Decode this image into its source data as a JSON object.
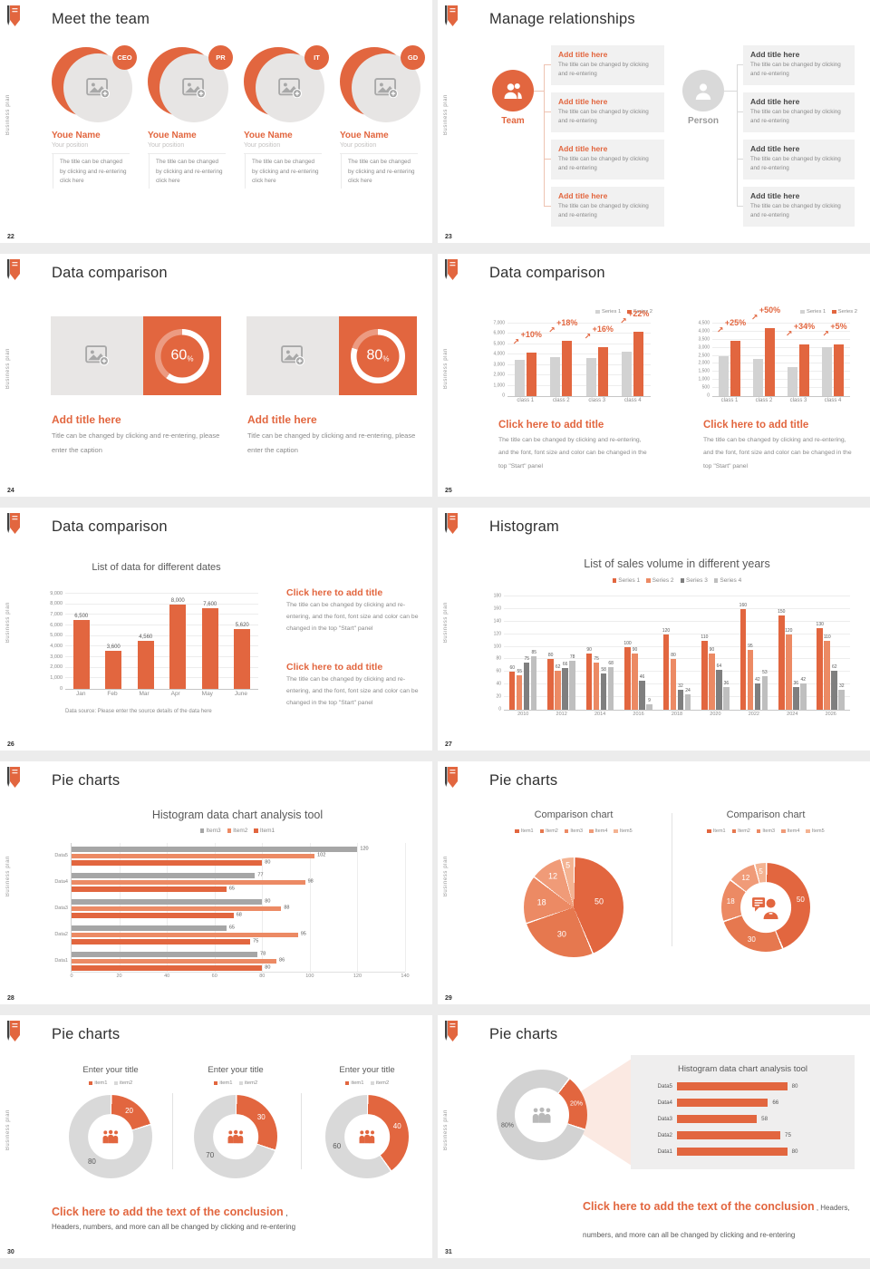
{
  "accent": "#e2663f",
  "background": "#ececec",
  "sidebar_text": "Business plan",
  "slides": {
    "s22": {
      "number": "22",
      "title": "Meet the team",
      "members": [
        {
          "badge": "CEO",
          "name": "Youe Name",
          "position": "Your position",
          "body": "The title can be changed by clicking and re-entering click here"
        },
        {
          "badge": "PR",
          "name": "Youe Name",
          "position": "Your position",
          "body": "The title can be changed by clicking and re-entering click here"
        },
        {
          "badge": "IT",
          "name": "Youe Name",
          "position": "Your position",
          "body": "The title can be changed by clicking and re-entering click here"
        },
        {
          "badge": "GD",
          "name": "Youe Name",
          "position": "Your position",
          "body": "The title can be changed by clicking and re-entering click here"
        }
      ]
    },
    "s23": {
      "number": "23",
      "title": "Manage relationships",
      "team_label": "Team",
      "person_label": "Person",
      "left_boxes": [
        {
          "title": "Add title here",
          "body": "The title can be changed by clicking and re-entering"
        },
        {
          "title": "Add title here",
          "body": "The title can be changed by clicking and re-entering"
        },
        {
          "title": "Add title here",
          "body": "The title can be changed by clicking and re-entering"
        },
        {
          "title": "Add title here",
          "body": "The title can be changed by clicking and re-entering"
        }
      ],
      "right_boxes": [
        {
          "title": "Add title here",
          "body": "The title can be changed by clicking and re-entering"
        },
        {
          "title": "Add title here",
          "body": "The title can be changed by clicking and re-entering"
        },
        {
          "title": "Add title here",
          "body": "The title can be changed by clicking and re-entering"
        },
        {
          "title": "Add title here",
          "body": "The title can be changed by clicking and re-entering"
        }
      ]
    },
    "s24": {
      "number": "24",
      "title": "Data comparison",
      "cards": [
        {
          "percent": 60,
          "value": "60",
          "unit": "%",
          "caption_title": "Add title here",
          "caption_body": "Title can be changed by clicking and re-entering, please enter the caption"
        },
        {
          "percent": 80,
          "value": "80",
          "unit": "%",
          "caption_title": "Add title here",
          "caption_body": "Title can be changed by clicking and re-entering, please enter the caption"
        }
      ]
    },
    "s25": {
      "number": "25",
      "title": "Data comparison",
      "caption_title": "Click here to add title",
      "caption_body": "The title can be changed by clicking and re-entering, and the font, font size and color can be changed in the top \"Start\" panel"
    },
    "s26": {
      "number": "26",
      "title": "Data comparison",
      "caption_title": "Click here to add title",
      "caption_body": "The title can be changed by clicking and re-entering, and the font, font size and color can be changed in the top \"Start\" panel"
    },
    "s27": {
      "number": "27",
      "title": "Histogram"
    },
    "s28": {
      "number": "28",
      "title": "Pie charts"
    },
    "s29": {
      "number": "29",
      "title": "Pie charts"
    },
    "s30": {
      "number": "30",
      "title": "Pie charts",
      "conclusion_title": "Click here to add the text of the conclusion",
      "conclusion_comma": " ,",
      "conclusion_body": "Headers, numbers, and more can all be changed by clicking and re-entering"
    },
    "s31": {
      "number": "31",
      "title": "Pie charts",
      "conclusion_title": "Click here to add the text of the conclusion",
      "conclusion_tail": " , Headers, numbers, and more can all be changed by clicking and re-entering"
    }
  },
  "chart_data": [
    {
      "id": "bar25a",
      "slide": 25,
      "type": "bar",
      "categories": [
        "class 1",
        "class 2",
        "class 3",
        "class 4"
      ],
      "series": [
        {
          "name": "Series 1",
          "color": "#d2d2d2",
          "values": [
            3500,
            3750,
            3700,
            4300
          ]
        },
        {
          "name": "Series 2",
          "color": "#e2663f",
          "values": [
            4200,
            5300,
            4750,
            6200
          ]
        }
      ],
      "annotations": [
        "+10%",
        "+18%",
        "+16%",
        "+22%"
      ],
      "ylim": [
        0,
        7000
      ],
      "ystep": 1000,
      "legend_position": "top-right"
    },
    {
      "id": "bar25b",
      "slide": 25,
      "type": "bar",
      "categories": [
        "class 1",
        "class 2",
        "class 3",
        "class 4"
      ],
      "series": [
        {
          "name": "Series 1",
          "color": "#d2d2d2",
          "values": [
            2500,
            2300,
            1800,
            3050
          ]
        },
        {
          "name": "Series 2",
          "color": "#e2663f",
          "values": [
            3450,
            4200,
            3200,
            3200
          ]
        }
      ],
      "annotations": [
        "+25%",
        "+50%",
        "+34%",
        "+5%"
      ],
      "ylim": [
        0,
        4500
      ],
      "ystep": 500,
      "legend_position": "top-right"
    },
    {
      "id": "bar26",
      "slide": 26,
      "type": "bar",
      "title": "List of data for different dates",
      "categories": [
        "Jan",
        "Feb",
        "Mar",
        "Apr",
        "May",
        "June"
      ],
      "series": [
        {
          "name": "data",
          "color": "#e2663f",
          "values": [
            6500,
            3600,
            4560,
            8000,
            7600,
            5620
          ]
        }
      ],
      "bar_labels": [
        "6,500",
        "3,600",
        "4,560",
        "8,000",
        "7,600",
        "5,620"
      ],
      "ylim": [
        0,
        9000
      ],
      "ystep": 1000,
      "source": "Data source: Please enter the source details of the data here"
    },
    {
      "id": "bar27",
      "slide": 27,
      "type": "bar",
      "title": "List of sales volume in different years",
      "categories": [
        "2010",
        "2012",
        "2014",
        "2016",
        "2018",
        "2020",
        "2022",
        "2024",
        "2026"
      ],
      "series": [
        {
          "name": "Series 1",
          "color": "#e2663f",
          "values": [
            60,
            80,
            90,
            100,
            120,
            110,
            160,
            150,
            130
          ]
        },
        {
          "name": "Series 2",
          "color": "#ec8a64",
          "values": [
            55,
            62,
            75,
            90,
            80,
            90,
            95,
            120,
            110
          ]
        },
        {
          "name": "Series 3",
          "color": "#7f7f7f",
          "values": [
            75,
            66,
            58,
            46,
            32,
            64,
            42,
            36,
            62
          ]
        },
        {
          "name": "Series 4",
          "color": "#bfbfbf",
          "values": [
            85,
            78,
            68,
            9,
            24,
            36,
            53,
            42,
            32
          ]
        }
      ],
      "ylim": [
        0,
        180
      ],
      "ystep": 20,
      "show_values": true,
      "legend_position": "top"
    },
    {
      "id": "hbar28",
      "slide": 28,
      "type": "bar",
      "orientation": "horizontal",
      "title": "Histogram data chart analysis tool",
      "categories": [
        "Data1",
        "Data2",
        "Data3",
        "Data4",
        "Data5"
      ],
      "series": [
        {
          "name": "Item3",
          "color": "#a6a6a6",
          "values": [
            78,
            65,
            80,
            77,
            120
          ]
        },
        {
          "name": "Item2",
          "color": "#ec8a64",
          "values": [
            86,
            95,
            88,
            98,
            102
          ]
        },
        {
          "name": "Item1",
          "color": "#e2663f",
          "values": [
            80,
            75,
            68,
            65,
            80
          ]
        }
      ],
      "xlim": [
        0,
        140
      ],
      "xstep": 20,
      "legend_position": "top"
    },
    {
      "id": "pie29a",
      "slide": 29,
      "type": "pie",
      "title": "Comparison chart",
      "legend": [
        "Item1",
        "Item2",
        "Item3",
        "Item4",
        "Item5"
      ],
      "values": [
        50,
        30,
        18,
        12,
        5
      ],
      "labels": [
        "50",
        "30",
        "18",
        "12",
        "5"
      ],
      "colors": [
        "#e2663f",
        "#e6784f",
        "#ec8a64",
        "#f09b78",
        "#f4b392"
      ],
      "legend_position": "top"
    },
    {
      "id": "pie29b",
      "slide": 29,
      "type": "pie",
      "donut": true,
      "title": "Comparison chart",
      "legend": [
        "Item1",
        "Item2",
        "Item3",
        "Item4",
        "Item5"
      ],
      "values": [
        50,
        30,
        18,
        12,
        5
      ],
      "labels": [
        "50",
        "30",
        "18",
        "12",
        "5"
      ],
      "colors": [
        "#e2663f",
        "#e6784f",
        "#ec8a64",
        "#f09b78",
        "#f4b392"
      ],
      "legend_position": "top"
    },
    {
      "id": "pie30",
      "slide": 30,
      "type": "pie",
      "donut": true,
      "title": "Enter your title",
      "legend": [
        "item1",
        "item2"
      ],
      "colors": [
        "#e2663f",
        "#d9d9d9"
      ],
      "charts": [
        [
          20,
          80
        ],
        [
          30,
          70
        ],
        [
          40,
          60
        ]
      ]
    },
    {
      "id": "pie31",
      "slide": 31,
      "type": "pie",
      "donut": true,
      "values": [
        20,
        80
      ],
      "labels": [
        "20%",
        "80%"
      ],
      "colors": [
        "#e2663f",
        "#d2d2d2"
      ]
    },
    {
      "id": "hbar31",
      "slide": 31,
      "type": "bar",
      "orientation": "horizontal",
      "title": "Histogram data chart analysis tool",
      "categories": [
        "Data1",
        "Data2",
        "Data3",
        "Data4",
        "Data5"
      ],
      "values": [
        80,
        75,
        58,
        66,
        80
      ],
      "xlim": [
        0,
        100
      ]
    }
  ]
}
